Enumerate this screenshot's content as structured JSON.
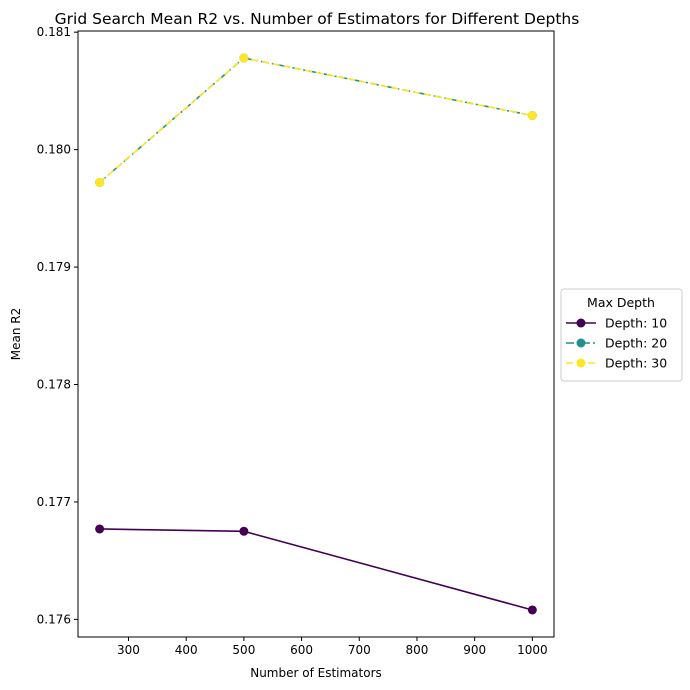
{
  "chart_data": {
    "type": "line",
    "title": "Grid Search Mean R2 vs. Number of Estimators for Different Depths",
    "xlabel": "Number of Estimators",
    "ylabel": "Mean R2",
    "x": [
      250,
      500,
      1000
    ],
    "xlim": [
      212.5,
      1037.5
    ],
    "ylim": [
      0.17585,
      0.18101
    ],
    "xticks": [
      300,
      400,
      500,
      600,
      700,
      800,
      900,
      1000
    ],
    "yticks": [
      0.176,
      0.177,
      0.178,
      0.179,
      0.18,
      0.181
    ],
    "grid": false,
    "legend": {
      "title": "Max Depth",
      "placement": "center-right-outside"
    },
    "series": [
      {
        "name": "Depth: 10",
        "values": [
          0.17677,
          0.17675,
          0.17608
        ],
        "color": "#440154",
        "line_style": "solid",
        "marker": "circle"
      },
      {
        "name": "Depth: 20",
        "values": [
          0.17972,
          0.18078,
          0.18029
        ],
        "color": "#21918c",
        "line_style": "dashdot",
        "marker": "circle"
      },
      {
        "name": "Depth: 30",
        "values": [
          0.17972,
          0.18078,
          0.18029
        ],
        "color": "#fde725",
        "line_style": "dashed",
        "marker": "circle"
      }
    ]
  }
}
